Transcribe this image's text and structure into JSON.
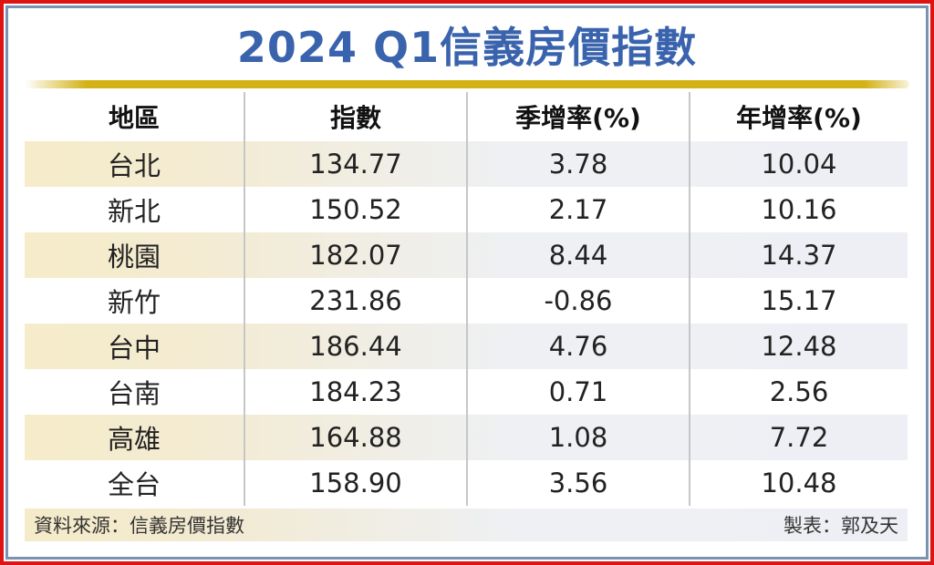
{
  "title": {
    "text": "2024 Q1信義房價指數",
    "color": "#3a63ad"
  },
  "decor": {
    "frame_red": "#dd1414",
    "frame_blue": "#7b92b1",
    "gold_bar": "#d3b217",
    "shaded_row_left": "#f6ecca",
    "shaded_row_right": "#edeff4"
  },
  "table": {
    "headers": [
      "地區",
      "指數",
      "季增率(%)",
      "年增率(%)"
    ],
    "rows": [
      {
        "region": "台北",
        "index": "134.77",
        "qoq": "3.78",
        "yoy": "10.04"
      },
      {
        "region": "新北",
        "index": "150.52",
        "qoq": "2.17",
        "yoy": "10.16"
      },
      {
        "region": "桃園",
        "index": "182.07",
        "qoq": "8.44",
        "yoy": "14.37"
      },
      {
        "region": "新竹",
        "index": "231.86",
        "qoq": "-0.86",
        "yoy": "15.17"
      },
      {
        "region": "台中",
        "index": "186.44",
        "qoq": "4.76",
        "yoy": "12.48"
      },
      {
        "region": "台南",
        "index": "184.23",
        "qoq": "0.71",
        "yoy": "2.56"
      },
      {
        "region": "高雄",
        "index": "164.88",
        "qoq": "1.08",
        "yoy": "7.72"
      },
      {
        "region": "全台",
        "index": "158.90",
        "qoq": "3.56",
        "yoy": "10.48"
      }
    ]
  },
  "footer": {
    "source": "資料來源：信義房價指數",
    "credit": "製表：郭及天"
  },
  "chart_data": {
    "type": "table",
    "title": "2024 Q1信義房價指數",
    "columns": [
      "地區",
      "指數",
      "季增率(%)",
      "年增率(%)"
    ],
    "rows": [
      [
        "台北",
        134.77,
        3.78,
        10.04
      ],
      [
        "新北",
        150.52,
        2.17,
        10.16
      ],
      [
        "桃園",
        182.07,
        8.44,
        14.37
      ],
      [
        "新竹",
        231.86,
        -0.86,
        15.17
      ],
      [
        "台中",
        186.44,
        4.76,
        12.48
      ],
      [
        "台南",
        184.23,
        0.71,
        2.56
      ],
      [
        "高雄",
        164.88,
        1.08,
        7.72
      ],
      [
        "全台",
        158.9,
        3.56,
        10.48
      ]
    ],
    "source": "信義房價指數",
    "credit": "郭及天"
  }
}
